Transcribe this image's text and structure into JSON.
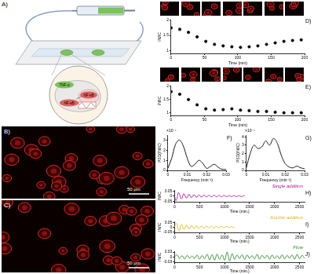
{
  "panels": [
    {
      "label": "A)",
      "diagram_labels": [
        "TNF-α",
        "NF-κB",
        "NF-κB"
      ]
    },
    {
      "label": "B)",
      "scale_bar": "50 µm"
    },
    {
      "label": "C)",
      "scale_bar": "50 µm"
    }
  ],
  "chart_data": [
    {
      "panel": "D)",
      "type": "scatter",
      "x_label": "Time (min)",
      "y_label": "IN/IC",
      "xlim": [
        0,
        200
      ],
      "xticks": [
        0,
        50,
        100,
        150,
        200
      ],
      "ylim": [
        0.9,
        2
      ],
      "yticks": [
        1,
        1.5,
        2
      ],
      "grid": false,
      "x": [
        0,
        13,
        26,
        39,
        52,
        65,
        78,
        91,
        104,
        117,
        130,
        143,
        156,
        169,
        182,
        195
      ],
      "series": [
        {
          "color": "#000000",
          "marker": "circle",
          "values": [
            1.75,
            1.7,
            1.6,
            1.45,
            1.3,
            1.2,
            1.15,
            1.12,
            1.1,
            1.12,
            1.15,
            1.2,
            1.25,
            1.3,
            1.33,
            1.35
          ]
        }
      ]
    },
    {
      "panel": "E)",
      "type": "scatter",
      "x_label": "Time (min)",
      "y_label": "IN/IC",
      "xlim": [
        0,
        200
      ],
      "xticks": [
        0,
        50,
        100,
        150,
        200
      ],
      "ylim": [
        0.9,
        2
      ],
      "yticks": [
        1,
        1.5,
        2
      ],
      "grid": false,
      "x": [
        0,
        13,
        26,
        39,
        52,
        65,
        78,
        91,
        104,
        117,
        130,
        143,
        156,
        169,
        182,
        195
      ],
      "series": [
        {
          "color": "#000000",
          "marker": "circle",
          "values": [
            1.8,
            1.7,
            1.5,
            1.3,
            1.15,
            1.1,
            1.12,
            1.15,
            1.1,
            1.08,
            1.05,
            1.05,
            1.02,
            1.0,
            1.0,
            1.0
          ]
        }
      ]
    },
    {
      "panel": "F)",
      "type": "line",
      "x_label": "Frequency (min⁻¹)",
      "y_label": "PSD(IN/IC)",
      "annotation": "×10⁻⁴",
      "xlim": [
        0,
        0.03
      ],
      "xticks": [
        0,
        0.01,
        0.02,
        0.03
      ],
      "ylim": [
        0,
        3.5
      ],
      "yticks": [
        0,
        1,
        2,
        3
      ],
      "grid": false,
      "x": [
        0,
        0.002,
        0.004,
        0.006,
        0.008,
        0.01,
        0.012,
        0.014,
        0.016,
        0.018,
        0.02,
        0.022,
        0.024,
        0.026,
        0.028,
        0.03
      ],
      "series": [
        {
          "color": "#000000",
          "line_style": "solid",
          "values": [
            0.2,
            1.2,
            2.6,
            3.0,
            2.4,
            1.2,
            0.4,
            0.6,
            1.0,
            0.7,
            0.2,
            0.4,
            0.6,
            0.3,
            0.1,
            0.1
          ]
        }
      ]
    },
    {
      "panel": "G)",
      "type": "line",
      "x_label": "Frequency (min⁻¹)",
      "y_label": "PSD(IN/IC)",
      "annotation": "×10⁻⁴",
      "xlim": [
        0,
        0.03
      ],
      "xticks": [
        0,
        0.01,
        0.02,
        0.03
      ],
      "ylim": [
        0,
        4.2
      ],
      "yticks": [
        0,
        1,
        2,
        3,
        4
      ],
      "grid": false,
      "x": [
        0,
        0.002,
        0.004,
        0.006,
        0.008,
        0.01,
        0.012,
        0.014,
        0.016,
        0.018,
        0.02,
        0.022,
        0.024,
        0.026,
        0.028,
        0.03
      ],
      "series": [
        {
          "color": "#000000",
          "line_style": "solid",
          "values": [
            0.3,
            2.0,
            3.0,
            2.6,
            2.8,
            3.5,
            3.0,
            3.8,
            3.2,
            1.8,
            0.8,
            0.4,
            0.3,
            0.5,
            0.3,
            0.2
          ]
        }
      ]
    },
    {
      "panel": "H)",
      "type": "line",
      "x_label": "Time (min.)",
      "y_label": "IN/IC",
      "legend": "upper right",
      "xlim": [
        0,
        2600
      ],
      "xticks": [
        0,
        500,
        1000,
        1500,
        2000,
        2500
      ],
      "ylim": [
        -0.06,
        0.06
      ],
      "yticks": [
        -0.05,
        0,
        0.05
      ],
      "grid": false,
      "x": [
        0,
        25,
        50,
        75,
        100,
        125,
        150,
        175,
        200,
        225,
        250,
        275,
        300,
        325,
        350,
        375,
        400,
        425,
        450,
        475,
        500,
        525,
        550,
        575,
        600,
        625,
        650,
        675,
        700,
        725,
        750,
        775,
        800,
        825,
        850,
        875,
        900,
        925,
        950,
        975,
        1000,
        1025,
        1050,
        1075,
        1100,
        1125,
        1150,
        1175,
        1200,
        1225,
        1250,
        1275,
        1300,
        1325,
        1350,
        1375,
        1400
      ],
      "series": [
        {
          "name": "Single addition",
          "color": "#b0179a",
          "line_style": "solid",
          "values": [
            0.0,
            -0.045,
            -0.02,
            0.035,
            0.02,
            -0.025,
            -0.02,
            0.02,
            0.018,
            -0.015,
            -0.016,
            0.012,
            0.014,
            -0.01,
            -0.012,
            0.01,
            0.011,
            -0.009,
            -0.01,
            0.008,
            0.009,
            -0.008,
            -0.008,
            0.007,
            0.008,
            -0.007,
            -0.007,
            0.006,
            0.007,
            -0.006,
            -0.006,
            0.006,
            0.006,
            -0.005,
            -0.006,
            0.005,
            0.006,
            -0.005,
            -0.005,
            0.005,
            0.005,
            -0.004,
            -0.005,
            0.004,
            0.005,
            -0.004,
            -0.004,
            0.004,
            0.004,
            -0.004,
            -0.004,
            0.004,
            0.004,
            -0.003,
            -0.004,
            0.003,
            0.003
          ]
        }
      ]
    },
    {
      "panel": "I)",
      "type": "line",
      "x_label": "Time (min.)",
      "y_label": "IN/IC",
      "legend": "upper right",
      "xlim": [
        0,
        2600
      ],
      "xticks": [
        0,
        500,
        1000,
        1500,
        2000,
        2500
      ],
      "ylim": [
        -0.06,
        0.06
      ],
      "yticks": [
        -0.05,
        0,
        0.05
      ],
      "grid": false,
      "x": [
        0,
        25,
        50,
        75,
        100,
        125,
        150,
        175,
        200,
        225,
        250,
        275,
        300,
        325,
        350,
        375,
        400,
        425,
        450,
        475,
        500,
        525,
        550,
        575,
        600,
        625,
        650,
        675,
        700,
        725,
        750,
        775,
        800,
        825,
        850,
        875,
        900,
        925,
        950,
        975,
        1000,
        1025,
        1050,
        1075,
        1100,
        1125,
        1150,
        1175,
        1200
      ],
      "series": [
        {
          "name": "Double addition",
          "color": "#e6b422",
          "line_style": "solid",
          "values": [
            0.0,
            0.04,
            0.03,
            -0.03,
            -0.035,
            0.02,
            0.025,
            -0.02,
            -0.02,
            0.015,
            0.018,
            -0.015,
            -0.015,
            0.012,
            0.014,
            -0.012,
            -0.012,
            0.01,
            0.011,
            -0.01,
            -0.01,
            0.009,
            0.009,
            -0.008,
            -0.008,
            0.008,
            0.008,
            -0.007,
            -0.007,
            0.007,
            0.007,
            -0.006,
            -0.006,
            0.006,
            0.006,
            -0.006,
            -0.005,
            0.005,
            0.005,
            -0.005,
            -0.005,
            0.005,
            0.004,
            -0.004,
            -0.004,
            0.004,
            0.004,
            -0.004,
            -0.003
          ]
        }
      ]
    },
    {
      "panel": "J)",
      "type": "line",
      "x_label": "Time (min.)",
      "y_label": "IN/IC",
      "legend": "upper right",
      "xlim": [
        0,
        2600
      ],
      "xticks": [
        0,
        500,
        1000,
        1500,
        2000,
        2500
      ],
      "ylim": [
        -0.035,
        0.035
      ],
      "yticks": [
        -0.03,
        0,
        0.03
      ],
      "grid": false,
      "x": [
        0,
        50,
        100,
        150,
        200,
        250,
        300,
        350,
        400,
        450,
        500,
        550,
        600,
        650,
        700,
        750,
        800,
        850,
        900,
        950,
        1000,
        1050,
        1100,
        1150,
        1200,
        1250,
        1300,
        1350,
        1400,
        1450,
        1500,
        1550,
        1600,
        1650,
        1700,
        1750,
        1800,
        1850,
        1900,
        1950,
        2000,
        2050,
        2100,
        2150,
        2200,
        2250,
        2300,
        2350,
        2400,
        2450,
        2500,
        2550,
        2600
      ],
      "series": [
        {
          "name": "Flow",
          "color": "#2e8b2e",
          "line_style": "solid",
          "values": [
            0.0,
            0.012,
            -0.01,
            0.008,
            -0.012,
            0.01,
            -0.008,
            0.006,
            -0.01,
            0.012,
            -0.014,
            0.01,
            -0.012,
            0.016,
            -0.018,
            0.014,
            -0.02,
            0.018,
            -0.016,
            0.012,
            -0.02,
            0.03,
            -0.025,
            0.02,
            -0.015,
            0.012,
            -0.01,
            0.014,
            -0.016,
            0.012,
            -0.01,
            0.008,
            -0.012,
            0.016,
            -0.014,
            0.01,
            -0.008,
            0.01,
            -0.014,
            0.012,
            -0.01,
            0.008,
            -0.012,
            0.014,
            -0.012,
            0.01,
            -0.008,
            0.012,
            -0.014,
            0.016,
            -0.012,
            0.01,
            -0.008
          ]
        }
      ]
    }
  ]
}
